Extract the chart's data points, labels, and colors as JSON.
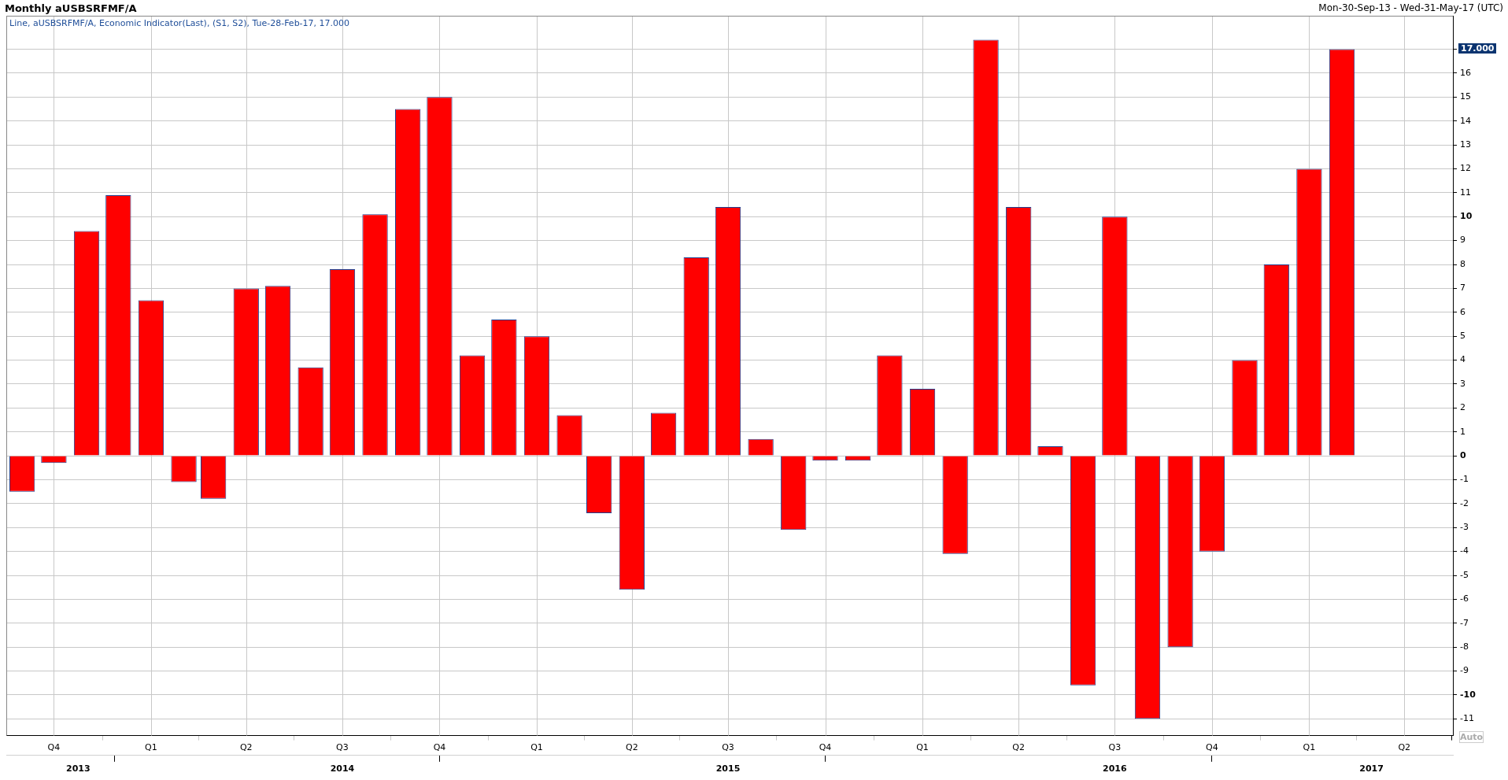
{
  "chart_data": {
    "type": "bar",
    "title": "Monthly aUSBSRFMF/A",
    "subtitle": "Line, aUSBSRFMF/A, Economic Indicator(Last), (S1, S2), Tue-28-Feb-17, 17.000",
    "annotations": [
      "Mon-30-Sep-13 - Wed-31-May-17 (UTC)",
      "17.000",
      "Auto"
    ],
    "x": [
      "2013-09",
      "2013-10",
      "2013-11",
      "2013-12",
      "2014-01",
      "2014-02",
      "2014-03",
      "2014-04",
      "2014-05",
      "2014-06",
      "2014-07",
      "2014-08",
      "2014-09",
      "2014-10",
      "2014-11",
      "2014-12",
      "2015-01",
      "2015-02",
      "2015-03",
      "2015-04",
      "2015-05",
      "2015-06",
      "2015-07",
      "2015-08",
      "2015-09",
      "2015-10",
      "2015-11",
      "2015-12",
      "2016-01",
      "2016-02",
      "2016-03",
      "2016-04",
      "2016-05",
      "2016-06",
      "2016-07",
      "2016-08",
      "2016-09",
      "2016-10",
      "2016-11",
      "2016-12",
      "2017-01",
      "2017-02"
    ],
    "values": [
      -1.5,
      -0.3,
      9.4,
      10.9,
      6.5,
      -1.1,
      -1.8,
      7.0,
      7.1,
      3.7,
      7.8,
      10.1,
      14.5,
      15.0,
      4.2,
      5.7,
      5.0,
      1.7,
      -2.4,
      -5.6,
      1.8,
      8.3,
      10.4,
      0.7,
      -3.1,
      -0.2,
      -0.2,
      4.2,
      2.8,
      -4.1,
      17.4,
      10.4,
      0.4,
      -9.6,
      10.0,
      -11.0,
      -8.0,
      -4.0,
      4.0,
      8.0,
      12.0,
      17.0
    ],
    "color": "#ff0000",
    "xlim": [
      "2013-08-17",
      "2017-05-17"
    ],
    "xticks": [
      {
        "value": "2013-10",
        "label": "Q4"
      },
      {
        "value": "2014-01",
        "label": "Q1"
      },
      {
        "value": "2014-04",
        "label": "Q2"
      },
      {
        "value": "2014-07",
        "label": "Q3"
      },
      {
        "value": "2014-10",
        "label": "Q4"
      },
      {
        "value": "2015-01",
        "label": "Q1"
      },
      {
        "value": "2015-04",
        "label": "Q2"
      },
      {
        "value": "2015-07",
        "label": "Q3"
      },
      {
        "value": "2015-10",
        "label": "Q4"
      },
      {
        "value": "2016-01",
        "label": "Q1"
      },
      {
        "value": "2016-04",
        "label": "Q2"
      },
      {
        "value": "2016-07",
        "label": "Q3"
      },
      {
        "value": "2016-10",
        "label": "Q4"
      },
      {
        "value": "2017-01",
        "label": "Q1"
      },
      {
        "value": "2017-04",
        "label": "Q2"
      }
    ],
    "x2lim": [
      "2013-08-17",
      "2017-05-17"
    ],
    "x2ticks": [
      {
        "value": "2013-10-24",
        "label": "2013"
      },
      {
        "value": "2014-01",
        "label": null
      },
      {
        "value": "2014-07",
        "label": "2014"
      },
      {
        "value": "2015-01",
        "label": null
      },
      {
        "value": "2015-07",
        "label": "2015"
      },
      {
        "value": "2016-01",
        "label": null
      },
      {
        "value": "2016-07",
        "label": "2016"
      },
      {
        "value": "2017-01",
        "label": null
      },
      {
        "value": "2017-03",
        "label": "2017"
      }
    ],
    "ylim": [
      -11.7,
      18.4
    ],
    "yticks": [
      -11,
      -10,
      -9,
      -8,
      -7,
      -6,
      -5,
      -4,
      -3,
      -2,
      -1,
      0,
      1,
      2,
      3,
      4,
      5,
      6,
      7,
      8,
      9,
      10,
      11,
      12,
      13,
      14,
      15,
      16,
      {
        "value": 17,
        "label": null
      }
    ],
    "grid": true
  }
}
